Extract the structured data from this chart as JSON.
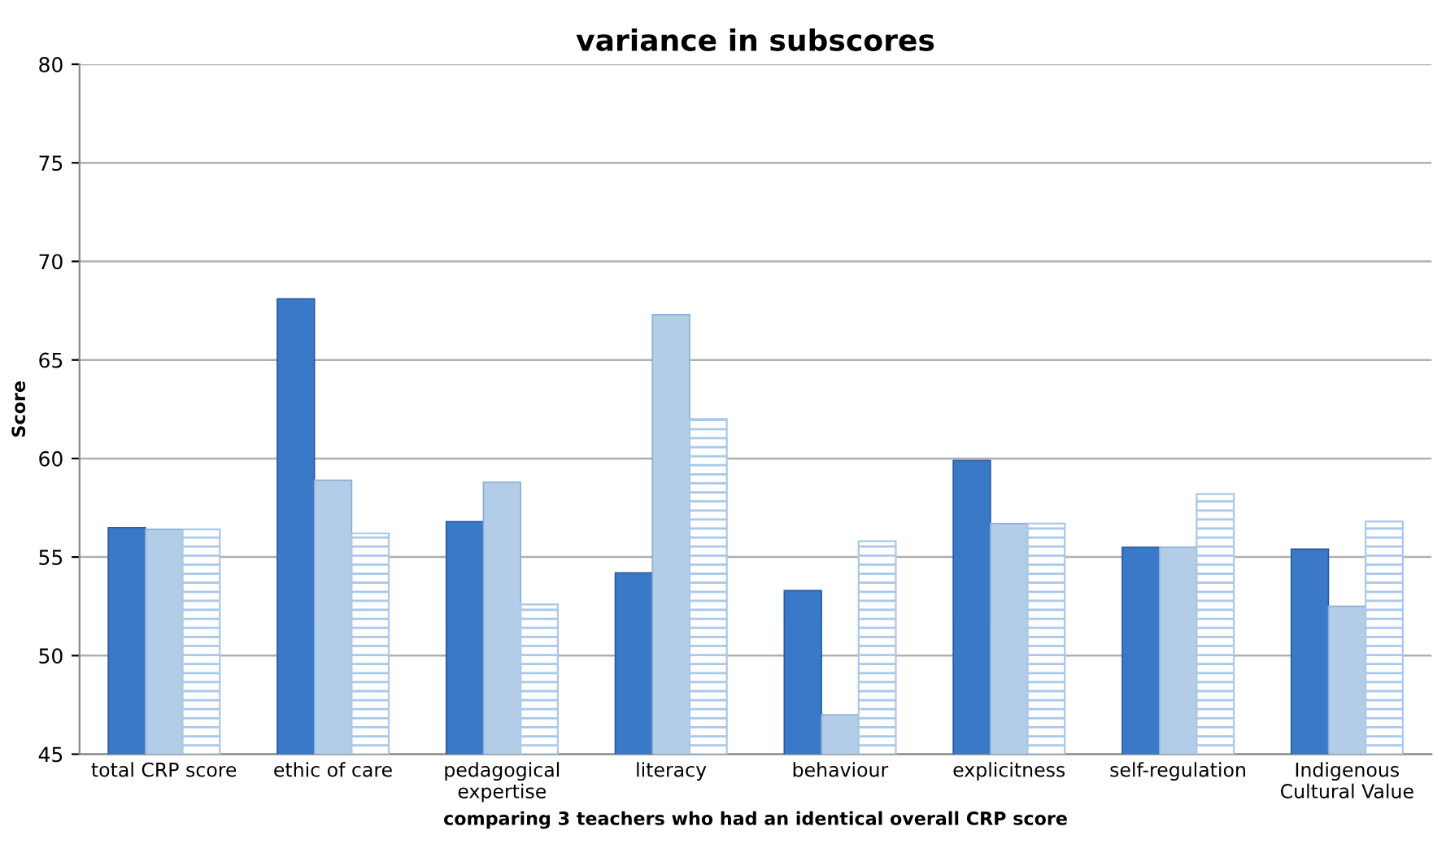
{
  "chart_data": {
    "type": "bar",
    "title": "variance in subscores",
    "xlabel": "comparing 3 teachers who had an identical overall CRP score",
    "ylabel": "Score",
    "categories": [
      "total CRP score",
      "ethic of care",
      "pedagogical\nexpertise",
      "literacy",
      "behaviour",
      "explicitness",
      "self-regulation",
      "Indigenous\nCultural Value"
    ],
    "series": [
      {
        "color": "#3a78c8",
        "values": [
          56.5,
          68.1,
          56.8,
          54.2,
          53.3,
          59.9,
          55.5,
          55.4
        ]
      },
      {
        "color": "#b3cde8",
        "values": [
          56.4,
          58.9,
          58.8,
          67.3,
          47.0,
          56.7,
          55.5,
          52.5
        ]
      },
      {
        "color": "#a9c8ea",
        "values": [
          56.4,
          56.2,
          52.6,
          62.0,
          55.8,
          56.7,
          58.2,
          56.8
        ]
      }
    ],
    "ylim": [
      45,
      80
    ],
    "yticks": [
      45,
      50,
      55,
      60,
      65,
      70,
      75,
      80
    ],
    "grid": "y",
    "legend": false
  }
}
